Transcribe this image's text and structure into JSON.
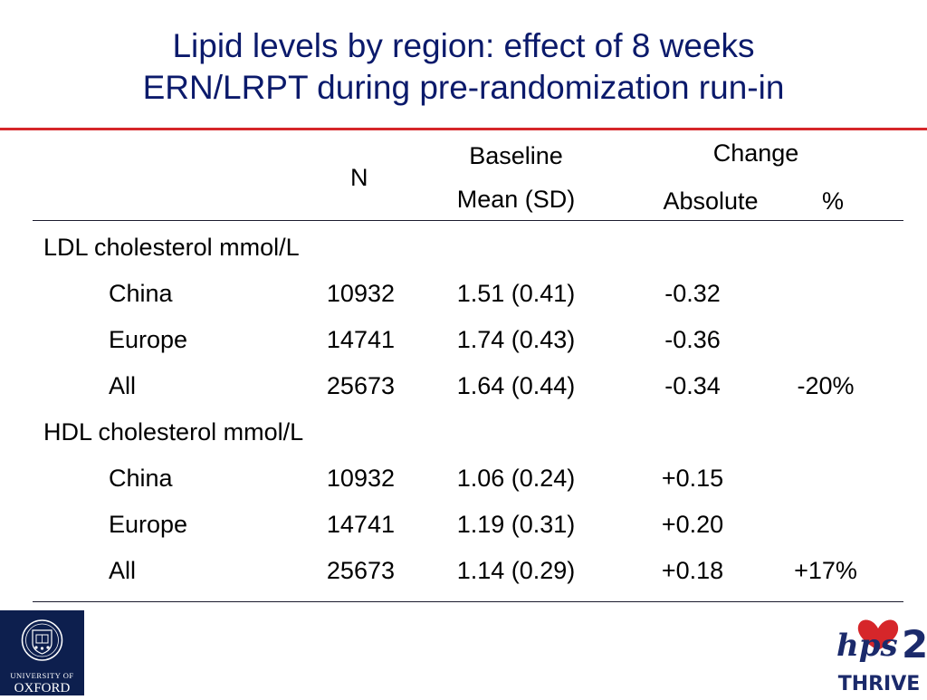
{
  "title": {
    "line1": "Lipid levels by region: effect of 8 weeks",
    "line2": "ERN/LRPT during pre-randomization run-in"
  },
  "table": {
    "headers": {
      "n": "N",
      "baseline": "Baseline",
      "mean_sd": "Mean (SD)",
      "change": "Change",
      "absolute": "Absolute",
      "percent": "%"
    },
    "sections": [
      {
        "label": "LDL cholesterol mmol/L",
        "rows": [
          {
            "region": "China",
            "n": "10932",
            "baseline": "1.51 (0.41)",
            "absolute": "-0.32",
            "percent": ""
          },
          {
            "region": "Europe",
            "n": "14741",
            "baseline": "1.74 (0.43)",
            "absolute": "-0.36",
            "percent": ""
          },
          {
            "region": "All",
            "n": "25673",
            "baseline": "1.64 (0.44)",
            "absolute": "-0.34",
            "percent": "-20%"
          }
        ]
      },
      {
        "label": "HDL cholesterol mmol/L",
        "rows": [
          {
            "region": "China",
            "n": "10932",
            "baseline": "1.06 (0.24)",
            "absolute": "+0.15",
            "percent": ""
          },
          {
            "region": "Europe",
            "n": "14741",
            "baseline": "1.19 (0.31)",
            "absolute": "+0.20",
            "percent": ""
          },
          {
            "region": "All",
            "n": "25673",
            "baseline": "1.14 (0.29)",
            "absolute": "+0.18",
            "percent": "+17%"
          }
        ]
      }
    ]
  },
  "logos": {
    "oxford_line1": "UNIVERSITY OF",
    "oxford_line2": "OXFORD",
    "hps_mark": "hps",
    "hps_number": "2",
    "hps_name": "THRIVE"
  },
  "colors": {
    "title": "#0b1a6b",
    "rule": "#d6262a",
    "oxford_blue": "#0d1f4e",
    "thrive_red": "#d6262a",
    "thrive_navy": "#1b2a6b"
  }
}
